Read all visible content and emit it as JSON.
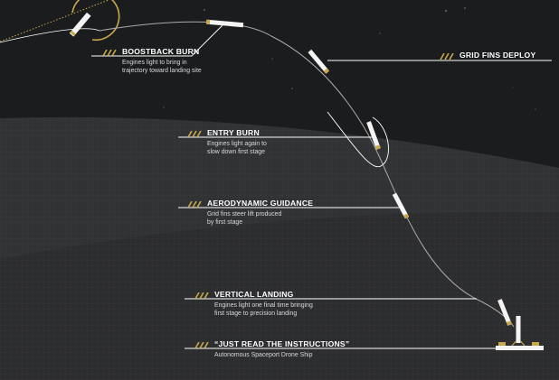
{
  "colors": {
    "space": "#1b1c1e",
    "planet": "#303234",
    "planet_edge": "#3a3c3e",
    "accent": "#c9a84c",
    "line": "#ffffff",
    "trajectory": "#a9aaa9",
    "text": "#ffffff",
    "subtext": "#d9d9d9"
  },
  "steps": [
    {
      "id": "boostback",
      "title": "BOOSTBACK BURN",
      "desc": "Engines light to bring in\ntrajectory toward landing site"
    },
    {
      "id": "gridfins",
      "title": "GRID FINS DEPLOY",
      "desc": ""
    },
    {
      "id": "entry",
      "title": "ENTRY BURN",
      "desc": "Engines light again to\nslow down first stage"
    },
    {
      "id": "aero",
      "title": "AERODYNAMIC GUIDANCE",
      "desc": "Grid fins steer lift produced\nby first stage"
    },
    {
      "id": "landing",
      "title": "VERTICAL LANDING",
      "desc": "Engines light one final time bringing\nfirst stage to precision landing"
    },
    {
      "id": "droneship",
      "title": "“JUST READ THE INSTRUCTIONS”",
      "desc": "Autonomous Spaceport Drone Ship"
    }
  ],
  "icons": {
    "hatch": "hatch-marks-icon",
    "rocket": "rocket-stage-icon",
    "ship": "drone-ship-icon"
  }
}
